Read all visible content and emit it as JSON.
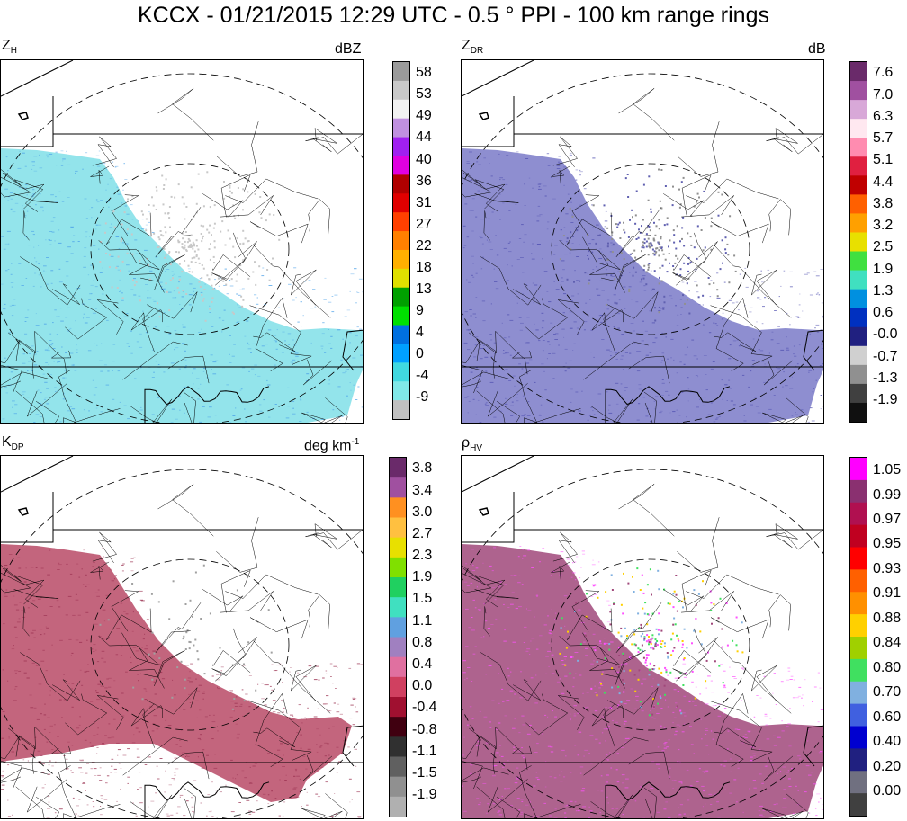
{
  "title": "KCCX - 01/21/2015 12:29 UTC - 0.5 ° PPI - 100 km range rings",
  "chart_data": [
    {
      "type": "heatmap",
      "name_sub": "H",
      "name_main": "Z",
      "units": "dBZ",
      "colorbar_ticks": [
        "58",
        "53",
        "49",
        "44",
        "40",
        "36",
        "31",
        "27",
        "22",
        "18",
        "13",
        "9",
        "4",
        "0",
        "-4",
        "-9"
      ],
      "colorbar_colors": [
        "#9a9a9a",
        "#c9c9c9",
        "#f2f2f2",
        "#c090e0",
        "#a020f0",
        "#e000e0",
        "#b00000",
        "#e00000",
        "#ff4000",
        "#ff8000",
        "#ffb000",
        "#e0e000",
        "#00a000",
        "#00e000",
        "#0070e0",
        "#00a0ff",
        "#40d8e0",
        "#80e8e8",
        "#c0c0c0"
      ],
      "field_color": "#80dfe8",
      "field_accent": "#4aa0e8"
    },
    {
      "type": "heatmap",
      "name_sub": "DR",
      "name_main": "Z",
      "units": "dB",
      "colorbar_ticks": [
        "7.6",
        "7.0",
        "6.3",
        "5.7",
        "5.1",
        "4.4",
        "3.8",
        "3.2",
        "2.5",
        "1.9",
        "1.3",
        "0.6",
        "-0.0",
        "-0.7",
        "-1.3",
        "-1.9"
      ],
      "colorbar_colors": [
        "#6a2a6a",
        "#a050a0",
        "#d8a8d8",
        "#ffe8f0",
        "#ff8cb0",
        "#e02040",
        "#c00000",
        "#ff6000",
        "#ffa000",
        "#e8e000",
        "#40e040",
        "#40e0c0",
        "#0090e0",
        "#0030c0",
        "#202080",
        "#d0d0d0",
        "#909090",
        "#404040",
        "#101010"
      ],
      "field_color": "#7a7ac8",
      "field_accent": "#5050b0"
    },
    {
      "type": "heatmap",
      "name_sub": "DP",
      "name_main": "K",
      "units": "deg km",
      "units_sup": "-1",
      "colorbar_ticks": [
        "3.8",
        "3.4",
        "3.0",
        "2.7",
        "2.3",
        "1.9",
        "1.5",
        "1.1",
        "0.8",
        "0.4",
        "0.0",
        "-0.4",
        "-0.8",
        "-1.1",
        "-1.5",
        "-1.9"
      ],
      "colorbar_colors": [
        "#6a2a6a",
        "#a050a0",
        "#ff9020",
        "#ffc040",
        "#e8e000",
        "#80e000",
        "#20d060",
        "#40e0c0",
        "#60a0e0",
        "#a080c0",
        "#e070a0",
        "#d04060",
        "#a01030",
        "#400010",
        "#303030",
        "#606060",
        "#909090",
        "#b0b0b0"
      ],
      "field_color": "#b84a66",
      "field_accent": "#9a3050"
    },
    {
      "type": "heatmap",
      "name_sub": "HV",
      "name_main": "ρ",
      "units": "",
      "colorbar_ticks": [
        "1.05",
        "0.99",
        "0.97",
        "0.95",
        "0.93",
        "0.91",
        "0.88",
        "0.84",
        "0.80",
        "0.70",
        "0.60",
        "0.40",
        "0.20",
        "0.00"
      ],
      "colorbar_colors": [
        "#ff00ff",
        "#8a3070",
        "#b01050",
        "#c00020",
        "#ff0000",
        "#ff6000",
        "#ff9000",
        "#ffd000",
        "#a0d000",
        "#40e060",
        "#80b0e0",
        "#4060e0",
        "#0000d0",
        "#202080",
        "#707080",
        "#404040"
      ],
      "field_color": "#a0487a",
      "field_accent": "#ff50ff"
    }
  ]
}
